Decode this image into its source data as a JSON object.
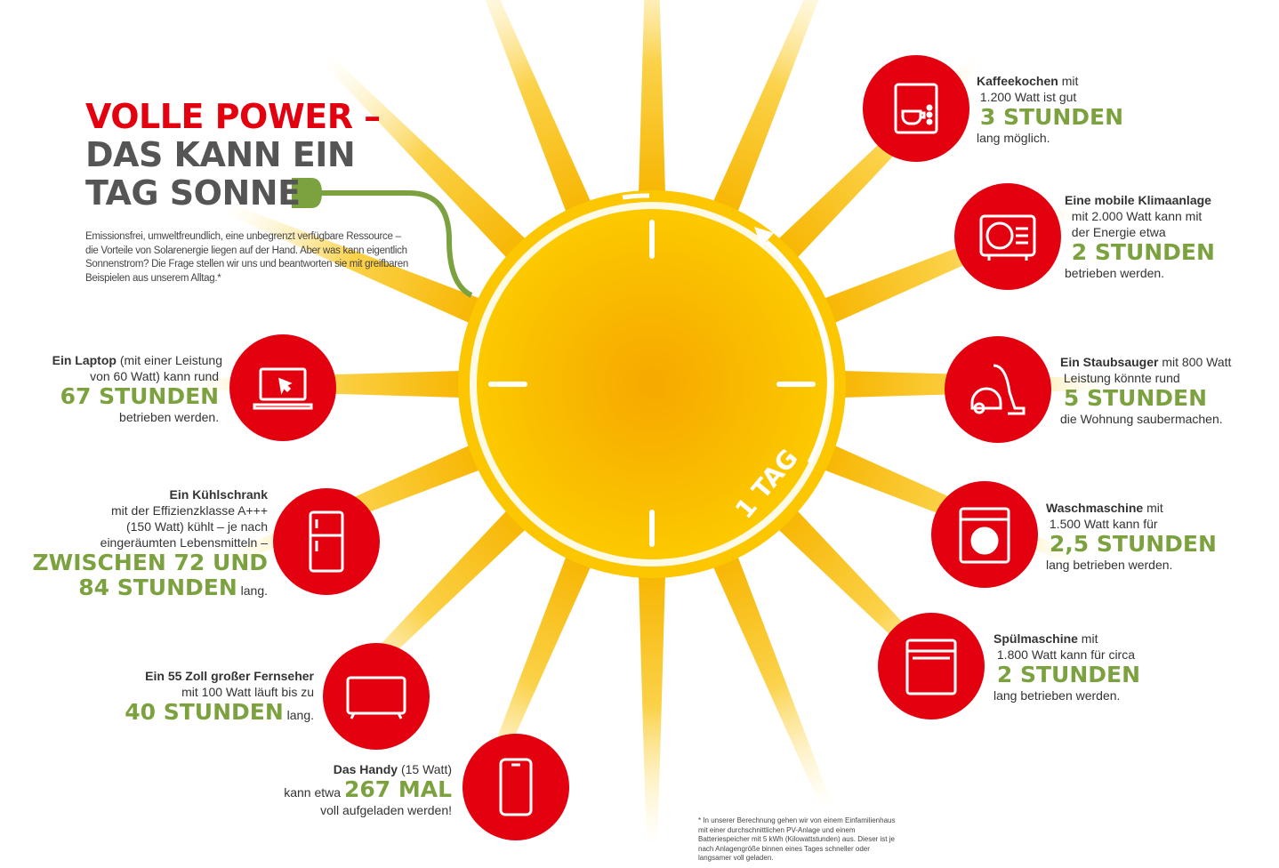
{
  "title": {
    "line1": "VOLLE POWER –",
    "line2": "DAS KANN EIN",
    "line3": "TAG SONNE"
  },
  "intro": "Emissionsfrei, umweltfreundlich, eine unbegrenzt verfügbare Ressource – die Vorteile von Solarenergie liegen auf der Hand. Aber was kann eigentlich Sonnenstrom? Die Frage stellen wir uns und beantworten sie mit greifbaren Beispielen aus unserem Alltag.*",
  "sun_label": "1 TAG",
  "colors": {
    "red": "#e3000f",
    "green": "#7ba23f",
    "sun": "#f7b500"
  },
  "items": {
    "coffee": {
      "icon": "coffee-machine-icon",
      "bold": "Kaffeekochen",
      "t1": " mit",
      "t2": "1.200 Watt ist gut",
      "big": "3 STUNDEN",
      "t3": "lang möglich."
    },
    "klima": {
      "icon": "air-conditioner-icon",
      "bold": "Eine mobile Klimaanlage",
      "t2": "mit 2.000 Watt kann mit",
      "t2b": "der Energie etwa",
      "big": "2 STUNDEN",
      "t3": "betrieben werden."
    },
    "vacuum": {
      "icon": "vacuum-cleaner-icon",
      "bold": "Ein Staubsauger",
      "t1": " mit 800 Watt",
      "t2": "Leistung könnte rund",
      "big": "5 STUNDEN",
      "t3": "die Wohnung saubermachen."
    },
    "washer": {
      "icon": "washing-machine-icon",
      "bold": "Waschmaschine",
      "t1": " mit",
      "t2": "1.500 Watt kann für",
      "big": "2,5 STUNDEN",
      "t3": "lang betrieben werden."
    },
    "dish": {
      "icon": "dishwasher-icon",
      "bold": "Spülmaschine",
      "t1": " mit",
      "t2": "1.800 Watt kann für circa",
      "big": "2 STUNDEN",
      "t3": "lang betrieben werden."
    },
    "laptop": {
      "icon": "laptop-icon",
      "bold": "Ein Laptop",
      "t1": " (mit einer Leistung",
      "t2": "von 60 Watt) kann rund",
      "big": "67 STUNDEN",
      "t3": "betrieben werden."
    },
    "fridge": {
      "icon": "fridge-icon",
      "bold": "Ein Kühlschrank",
      "t2": "mit der Effizienzklasse A+++",
      "t2b": "(150 Watt) kühlt – je nach",
      "t2c": "eingeräumten Lebensmitteln –",
      "big": "ZWISCHEN 72 UND",
      "big2": "84 STUNDEN",
      "t3": " lang."
    },
    "tv": {
      "icon": "tv-icon",
      "bold": "Ein 55 Zoll großer Fernseher",
      "t2": "mit 100 Watt läuft bis zu",
      "big": "40 STUNDEN",
      "t3": " lang."
    },
    "phone": {
      "icon": "smartphone-icon",
      "bold": "Das Handy",
      "t1": " (15 Watt)",
      "t2": "kann etwa ",
      "big": "267 MAL",
      "t3": "voll aufgeladen werden!"
    }
  },
  "footnote": "* In unserer Berechnung gehen wir von einem Einfamilienhaus mit einer durchschnittlichen PV-Anlage und einem Batteriespeicher mit 5 kWh (Kilowattstunden) aus. Dieser ist je nach Anlagengröße binnen eines Tages schneller oder langsamer voll geladen."
}
